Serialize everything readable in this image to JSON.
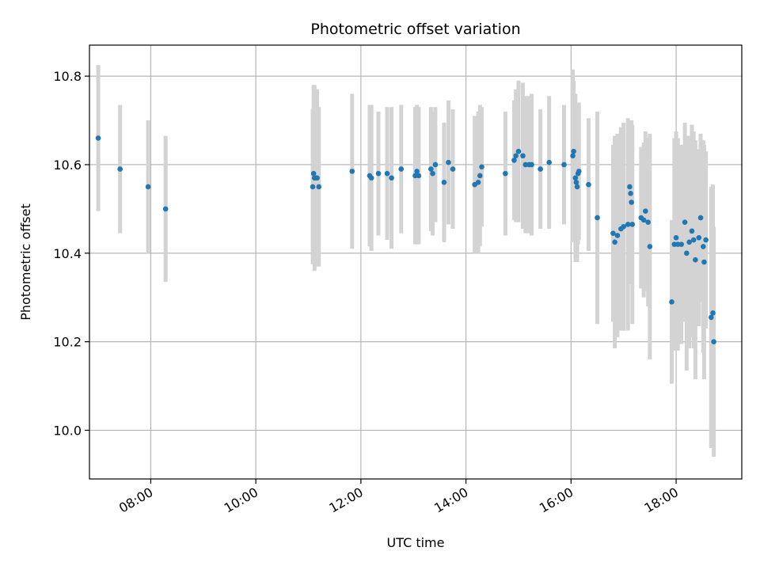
{
  "chart_data": {
    "type": "scatter",
    "title": "Photometric offset variation",
    "xlabel": "UTC time",
    "ylabel": "Photometric offset",
    "xlim": [
      "06:50",
      "19:15"
    ],
    "ylim": [
      9.89,
      10.87
    ],
    "grid": true,
    "x_ticks": [
      "08:00",
      "10:00",
      "12:00",
      "14:00",
      "16:00",
      "18:00"
    ],
    "y_ticks": [
      "10.0",
      "10.2",
      "10.4",
      "10.6",
      "10.8"
    ],
    "marker_color": "#1f77b4",
    "errorbar_color": "#d3d3d3",
    "series": [
      {
        "x": [
          "07:00",
          "07:25",
          "07:57",
          "08:17",
          "11:05",
          "11:06",
          "11:07",
          "11:08",
          "11:10",
          "11:12",
          "11:50",
          "12:10",
          "12:12",
          "12:20",
          "12:30",
          "12:35",
          "12:46",
          "13:02",
          "13:04",
          "13:06",
          "13:20",
          "13:22",
          "13:25",
          "13:35",
          "13:40",
          "13:45",
          "14:10",
          "14:14",
          "14:16",
          "14:18",
          "14:45",
          "14:55",
          "14:57",
          "15:00",
          "15:05",
          "15:08",
          "15:12",
          "15:15",
          "15:25",
          "15:35",
          "15:52",
          "16:02",
          "16:03",
          "16:05",
          "16:06",
          "16:07",
          "16:08",
          "16:09",
          "16:20",
          "16:30",
          "16:48",
          "16:50",
          "16:53",
          "16:57",
          "17:00",
          "17:05",
          "17:07",
          "17:08",
          "17:09",
          "17:10",
          "17:20",
          "17:23",
          "17:25",
          "17:28",
          "17:30",
          "17:55",
          "17:58",
          "18:00",
          "18:02",
          "18:06",
          "18:10",
          "18:12",
          "18:15",
          "18:18",
          "18:20",
          "18:22",
          "18:26",
          "18:28",
          "18:31",
          "18:32",
          "18:34",
          "18:40",
          "18:42",
          "18:43"
        ],
        "y": [
          10.66,
          10.59,
          10.55,
          10.5,
          10.55,
          10.58,
          10.57,
          10.57,
          10.57,
          10.55,
          10.585,
          10.575,
          10.57,
          10.58,
          10.58,
          10.57,
          10.59,
          10.575,
          10.585,
          10.575,
          10.59,
          10.58,
          10.6,
          10.56,
          10.605,
          10.59,
          10.555,
          10.56,
          10.575,
          10.595,
          10.58,
          10.61,
          10.62,
          10.63,
          10.62,
          10.6,
          10.6,
          10.6,
          10.59,
          10.605,
          10.6,
          10.62,
          10.63,
          10.57,
          10.56,
          10.55,
          10.58,
          10.585,
          10.555,
          10.48,
          10.445,
          10.425,
          10.44,
          10.455,
          10.46,
          10.465,
          10.55,
          10.535,
          10.515,
          10.465,
          10.48,
          10.475,
          10.495,
          10.47,
          10.415,
          10.29,
          10.42,
          10.435,
          10.42,
          10.42,
          10.47,
          10.4,
          10.425,
          10.45,
          10.43,
          10.385,
          10.435,
          10.48,
          10.415,
          10.38,
          10.43,
          10.255,
          10.265,
          10.2
        ],
        "err": [
          0.165,
          0.145,
          0.15,
          0.165,
          0.175,
          0.2,
          0.21,
          0.2,
          0.2,
          0.18,
          0.175,
          0.16,
          0.165,
          0.14,
          0.15,
          0.16,
          0.145,
          0.155,
          0.15,
          0.155,
          0.14,
          0.14,
          0.13,
          0.135,
          0.14,
          0.135,
          0.155,
          0.16,
          0.16,
          0.135,
          0.14,
          0.135,
          0.15,
          0.16,
          0.165,
          0.155,
          0.155,
          0.16,
          0.135,
          0.15,
          0.135,
          0.195,
          0.16,
          0.19,
          0.17,
          0.17,
          0.16,
          0.155,
          0.15,
          0.24,
          0.2,
          0.24,
          0.23,
          0.23,
          0.235,
          0.24,
          0.14,
          0.165,
          0.185,
          0.225,
          0.16,
          0.175,
          0.18,
          0.19,
          0.255,
          0.185,
          0.24,
          0.24,
          0.24,
          0.225,
          0.225,
          0.265,
          0.24,
          0.24,
          0.245,
          0.27,
          0.2,
          0.19,
          0.24,
          0.265,
          0.2,
          0.295,
          0.29,
          0.26
        ]
      }
    ]
  }
}
